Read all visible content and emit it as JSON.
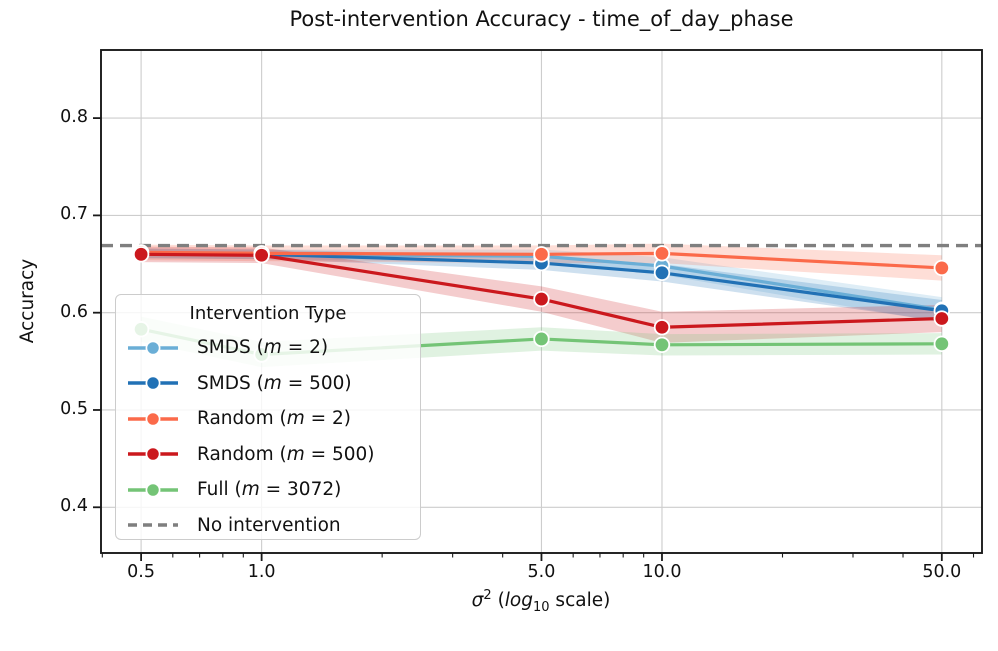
{
  "chart_data": {
    "type": "line",
    "title": "Post-intervention Accuracy - time_of_day_phase",
    "ylabel": "Accuracy",
    "xlabel_plain": "σ² (log₁₀ scale)",
    "xlabel_parts": {
      "sigma": "σ",
      "sq": "2",
      "mid": " (",
      "log": "log",
      "ten": "10",
      "end": " scale)"
    },
    "x_scale": "log10",
    "xlim": [
      0.397,
      63.0
    ],
    "ylim": [
      0.353,
      0.87
    ],
    "grid": true,
    "x": [
      0.5,
      1.0,
      5.0,
      10.0,
      50.0
    ],
    "x_tick_labels": [
      "0.5",
      "1.0",
      "5.0",
      "10.0",
      "50.0"
    ],
    "x_minor_ticks": [
      0.4,
      0.6,
      0.7,
      0.8,
      0.9,
      2,
      3,
      4,
      6,
      7,
      8,
      9,
      20,
      30,
      40,
      60
    ],
    "y_ticks": [
      0.4,
      0.5,
      0.6,
      0.7,
      0.8
    ],
    "y_tick_labels": [
      "0.4",
      "0.5",
      "0.6",
      "0.7",
      "0.8"
    ],
    "legend": {
      "title": "Intervention Type",
      "position": "lower left"
    },
    "series": [
      {
        "name": "SMDS (m = 2)",
        "color": "#6aaed6",
        "values": [
          0.661,
          0.66,
          0.658,
          0.648,
          0.603
        ],
        "band": [
          0.005,
          0.005,
          0.007,
          0.009,
          0.013
        ]
      },
      {
        "name": "SMDS (m = 500)",
        "color": "#2171b5",
        "values": [
          0.661,
          0.66,
          0.651,
          0.641,
          0.602
        ],
        "band": [
          0.005,
          0.005,
          0.007,
          0.009,
          0.011
        ]
      },
      {
        "name": "Random (m = 2)",
        "color": "#fb6a4a",
        "values": [
          0.662,
          0.661,
          0.66,
          0.661,
          0.646
        ],
        "band": [
          0.008,
          0.008,
          0.009,
          0.01,
          0.013
        ]
      },
      {
        "name": "Random (m = 500)",
        "color": "#cb181d",
        "values": [
          0.66,
          0.659,
          0.614,
          0.585,
          0.594
        ],
        "band": [
          0.008,
          0.008,
          0.013,
          0.016,
          0.014
        ]
      },
      {
        "name": "Full (m = 3072)",
        "color": "#74c476",
        "values": [
          0.583,
          0.557,
          0.573,
          0.567,
          0.568
        ],
        "band": [
          0.013,
          0.013,
          0.012,
          0.011,
          0.011
        ]
      }
    ],
    "reference_line": {
      "name": "No intervention",
      "color": "#7f7f7f",
      "style": "dashed",
      "value": 0.669
    },
    "style": {
      "grid_color": "#cdcdcd",
      "spine_color": "#1a1a1a",
      "band_opacity": 0.22,
      "marker_edge": "#ffffff"
    }
  }
}
